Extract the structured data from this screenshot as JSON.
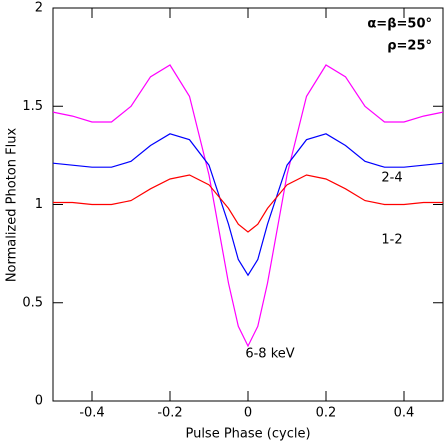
{
  "chart_data": {
    "type": "line",
    "x_label": "Pulse Phase (cycle)",
    "y_label": "Normalized Photon Flux",
    "annotations": [
      "α=β=50°",
      "ρ=25°"
    ],
    "x": [
      -0.5,
      -0.45,
      -0.4,
      -0.35,
      -0.3,
      -0.25,
      -0.2,
      -0.15,
      -0.1,
      -0.05,
      -0.025,
      0,
      0.025,
      0.05,
      0.1,
      0.15,
      0.2,
      0.25,
      0.3,
      0.35,
      0.4,
      0.45,
      0.5
    ],
    "series": [
      {
        "name": "6-8 keV",
        "color": "#ff00ff",
        "values": [
          1.47,
          1.45,
          1.42,
          1.42,
          1.5,
          1.65,
          1.71,
          1.55,
          1.15,
          0.6,
          0.38,
          0.28,
          0.38,
          0.6,
          1.15,
          1.55,
          1.71,
          1.65,
          1.5,
          1.42,
          1.42,
          1.45,
          1.47
        ]
      },
      {
        "name": "2-4",
        "color": "#0000ff",
        "values": [
          1.21,
          1.2,
          1.19,
          1.19,
          1.22,
          1.3,
          1.36,
          1.33,
          1.2,
          0.9,
          0.72,
          0.64,
          0.72,
          0.9,
          1.2,
          1.33,
          1.36,
          1.3,
          1.22,
          1.19,
          1.19,
          1.2,
          1.21
        ]
      },
      {
        "name": "1-2",
        "color": "#ff0000",
        "values": [
          1.01,
          1.01,
          1.0,
          1.0,
          1.02,
          1.08,
          1.13,
          1.15,
          1.1,
          0.98,
          0.9,
          0.86,
          0.9,
          0.98,
          1.1,
          1.15,
          1.13,
          1.08,
          1.02,
          1.0,
          1.0,
          1.01,
          1.01
        ]
      }
    ],
    "xlim": [
      -0.5,
      0.5
    ],
    "ylim": [
      0,
      2
    ],
    "xticks": [
      -0.4,
      -0.2,
      0,
      0.2,
      0.4
    ],
    "yticks": [
      0,
      0.5,
      1,
      1.5,
      2
    ]
  }
}
